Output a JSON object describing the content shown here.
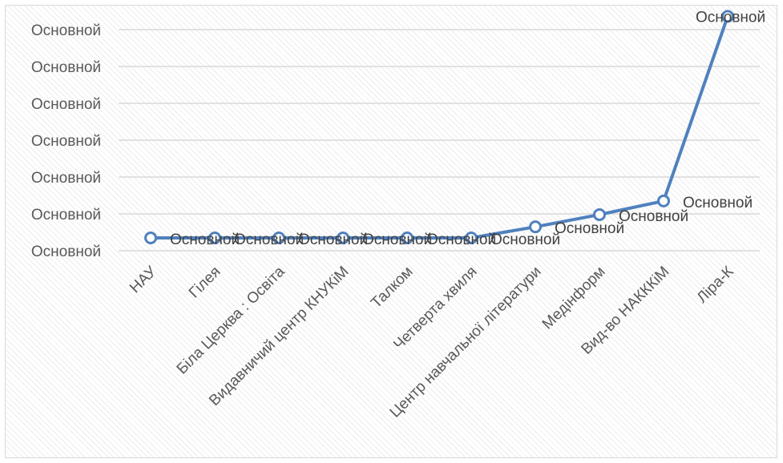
{
  "chart_data": {
    "type": "line",
    "categories": [
      "НАУ",
      "Гілея",
      "Біла Церква : Освіта",
      "Видавничий центр КНУКіМ",
      "Талком",
      "Четверта хвиля",
      "Центр навчальної літератури",
      "Медінформ",
      "Вид-во НАКККіМ",
      "Ліра-К"
    ],
    "series": [
      {
        "values": [
          1,
          1,
          1,
          1,
          1,
          1,
          1.3,
          1.63,
          2.0,
          7.0
        ],
        "data_labels": [
          "Основной",
          "Основной",
          "Основной",
          "Основной",
          "Основной",
          "Основной",
          "Основной",
          "Основной",
          "Основной",
          "Основной"
        ]
      }
    ],
    "y_tick_labels": [
      "Основной",
      "Основной",
      "Основной",
      "Основной",
      "Основной",
      "Основной",
      "Основной"
    ],
    "ylim": [
      0.7,
      7.7
    ],
    "grid": true,
    "legend": "none",
    "colors": {
      "line": "#4f81bd",
      "marker_fill": "#ffffff",
      "grid": "#d9d9d9",
      "text": "#595959"
    }
  }
}
